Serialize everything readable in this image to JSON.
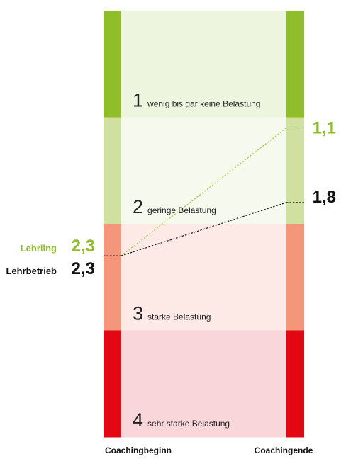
{
  "chart_data": {
    "type": "line",
    "categories": [
      "Coachingbeginn",
      "Coachingende"
    ],
    "ylim": [
      0,
      4
    ],
    "bands": [
      {
        "level": "1",
        "label": "wenig bis gar keine Belastung",
        "bar_color": "#8fbe2a",
        "fill_color": "#eef5df"
      },
      {
        "level": "2",
        "label": "geringe Belastung",
        "bar_color": "#cfe0a0",
        "fill_color": "#f6faee"
      },
      {
        "level": "3",
        "label": "starke Belastung",
        "bar_color": "#f3967a",
        "fill_color": "#fde9e5"
      },
      {
        "level": "4",
        "label": "sehr starke Belastung",
        "bar_color": "#e30613",
        "fill_color": "#f9d6d9"
      }
    ],
    "series": [
      {
        "name": "Lehrling",
        "values": [
          2.3,
          1.1
        ],
        "start_label": "2,3",
        "end_label": "1,1",
        "color": "#8dbd2c",
        "line_color": "#a9cf4a"
      },
      {
        "name": "Lehrbetrieb",
        "values": [
          2.3,
          1.8
        ],
        "start_label": "2,3",
        "end_label": "1,8",
        "color": "#111111",
        "line_color": "#222222"
      }
    ],
    "grid": false,
    "legend": "none"
  }
}
